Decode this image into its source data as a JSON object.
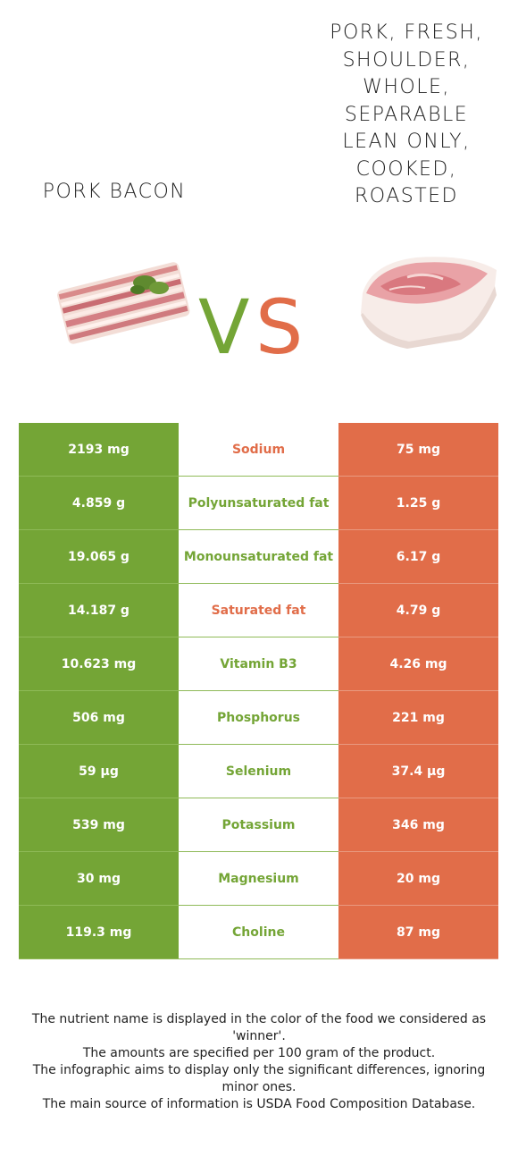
{
  "left_food": {
    "name": "Pork bacon",
    "color": "#74a536"
  },
  "right_food": {
    "name": "Pork, fresh, shoulder, whole, separable lean only, cooked, roasted",
    "color": "#e16d49"
  },
  "vs": {
    "v": "V",
    "s": "S"
  },
  "rows": [
    {
      "left": "2193 mg",
      "nutrient": "Sodium",
      "right": "75 mg",
      "winner": "right"
    },
    {
      "left": "4.859 g",
      "nutrient": "Polyunsaturated fat",
      "right": "1.25 g",
      "winner": "left"
    },
    {
      "left": "19.065 g",
      "nutrient": "Monounsaturated fat",
      "right": "6.17 g",
      "winner": "left"
    },
    {
      "left": "14.187 g",
      "nutrient": "Saturated fat",
      "right": "4.79 g",
      "winner": "right"
    },
    {
      "left": "10.623 mg",
      "nutrient": "Vitamin B3",
      "right": "4.26 mg",
      "winner": "left"
    },
    {
      "left": "506 mg",
      "nutrient": "Phosphorus",
      "right": "221 mg",
      "winner": "left"
    },
    {
      "left": "59 µg",
      "nutrient": "Selenium",
      "right": "37.4 µg",
      "winner": "left"
    },
    {
      "left": "539 mg",
      "nutrient": "Potassium",
      "right": "346 mg",
      "winner": "left"
    },
    {
      "left": "30 mg",
      "nutrient": "Magnesium",
      "right": "20 mg",
      "winner": "left"
    },
    {
      "left": "119.3 mg",
      "nutrient": "Choline",
      "right": "87 mg",
      "winner": "left"
    }
  ],
  "footer": {
    "line1": "The nutrient name is displayed in the color of the food we considered as 'winner'.",
    "line2": "The amounts are specified per 100 gram of the product.",
    "line3": "The infographic aims to display only the significant differences, ignoring minor ones.",
    "line4": "The main source of information is USDA Food Composition Database."
  }
}
